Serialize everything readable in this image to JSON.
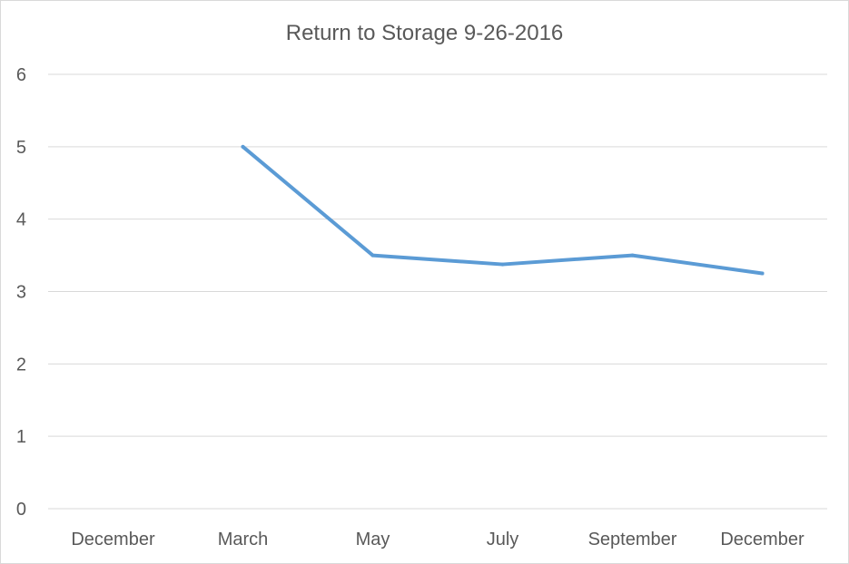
{
  "chart_data": {
    "type": "line",
    "title": "Return to Storage 9-26-2016",
    "xlabel": "",
    "ylabel": "",
    "categories": [
      "December",
      "March",
      "May",
      "July",
      "September",
      "December"
    ],
    "series": [
      {
        "values": [
          null,
          5,
          3.5,
          3.375,
          3.5,
          3.25
        ],
        "color": "#5b9bd5"
      }
    ],
    "ylim": [
      0,
      6
    ],
    "yticks": [
      0,
      1,
      2,
      3,
      4,
      5,
      6
    ],
    "grid": true,
    "legend": "none"
  }
}
